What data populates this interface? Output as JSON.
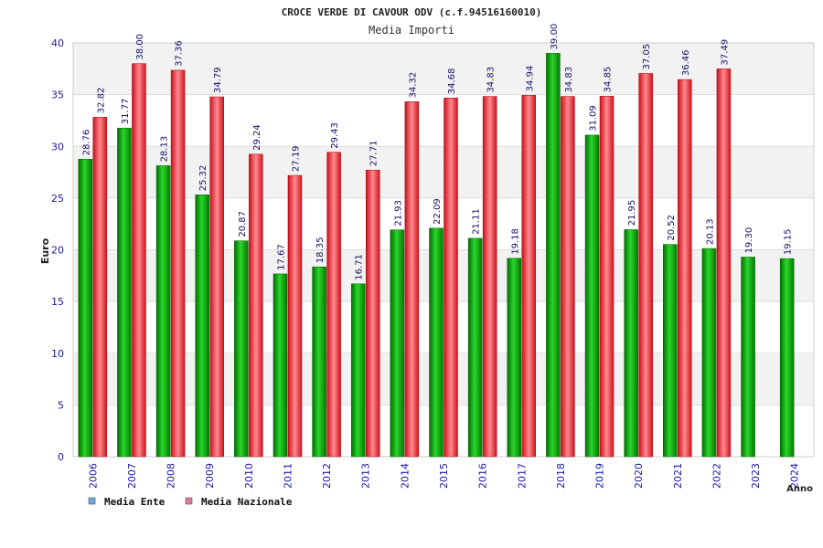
{
  "chart_data": {
    "type": "bar",
    "title": "CROCE VERDE DI CAVOUR ODV (c.f.94516160010)",
    "subtitle": "Media Importi",
    "xlabel": "Anno",
    "ylabel": "Euro",
    "ylim": [
      0,
      40
    ],
    "yticks": [
      0,
      5,
      10,
      15,
      20,
      25,
      30,
      35,
      40
    ],
    "grid": true,
    "legend_position": "bottom-left",
    "categories": [
      "2006",
      "2007",
      "2008",
      "2009",
      "2010",
      "2011",
      "2012",
      "2013",
      "2014",
      "2015",
      "2016",
      "2017",
      "2018",
      "2019",
      "2020",
      "2021",
      "2022",
      "2023",
      "2024"
    ],
    "series": [
      {
        "name": "Media Ente",
        "color": "#00aa00",
        "legend_color": "#6fa8dc",
        "values": [
          28.76,
          31.77,
          28.13,
          25.32,
          20.87,
          17.67,
          18.35,
          16.71,
          21.93,
          22.09,
          21.11,
          19.18,
          39.0,
          31.09,
          21.95,
          20.52,
          20.13,
          19.3,
          19.15
        ],
        "labels": [
          "28.76",
          "31.77",
          "28.13",
          "25.32",
          "20.87",
          "17.67",
          "18.35",
          "16.71",
          "21.93",
          "22.09",
          "21.11",
          "19.18",
          "39.00",
          "31.09",
          "21.95",
          "20.52",
          "20.13",
          "19.30",
          "19.15"
        ]
      },
      {
        "name": "Media Nazionale",
        "color": "#e8202a",
        "legend_color": "#e377a0",
        "values": [
          32.82,
          38.0,
          37.36,
          34.79,
          29.24,
          27.19,
          29.43,
          27.71,
          34.32,
          34.68,
          34.83,
          34.94,
          34.83,
          34.85,
          37.05,
          36.46,
          37.49,
          null,
          null
        ],
        "labels": [
          "32.82",
          "38.00",
          "37.36",
          "34.79",
          "29.24",
          "27.19",
          "29.43",
          "27.71",
          "34.32",
          "34.68",
          "34.83",
          "34.94",
          "34.83",
          "34.85",
          "37.05",
          "36.46",
          "37.49",
          "",
          ""
        ]
      }
    ]
  }
}
